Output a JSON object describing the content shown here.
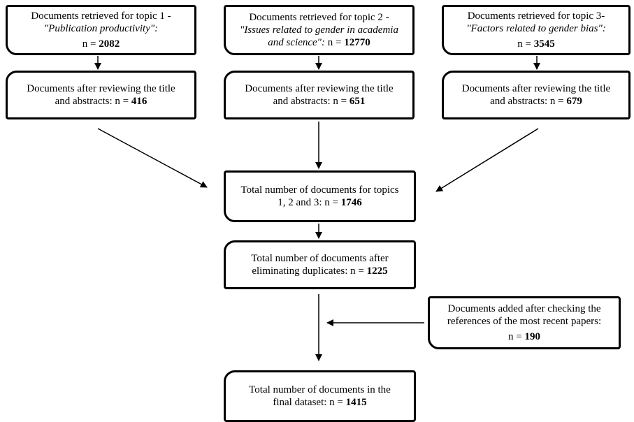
{
  "topic1": {
    "title_line1": "Documents retrieved for topic 1 -",
    "title_line2": "\"Publication productivity\":",
    "n_label": "n =",
    "n_value": "2082"
  },
  "topic2": {
    "title_line1": "Documents retrieved for topic 2 -",
    "title_line2": "\"Issues related to gender in academia",
    "title_line3a": "and science\":",
    "n_label": "n =",
    "n_value": "12770"
  },
  "topic3": {
    "title_line1": "Documents retrieved for topic 3-",
    "title_line2": "\"Factors related to gender bias\":",
    "n_label": "n =",
    "n_value": "3545"
  },
  "review1": {
    "line1": "Documents after reviewing the title",
    "line2a": "and abstracts: n =",
    "n_value": "416"
  },
  "review2": {
    "line1": "Documents after reviewing the title",
    "line2a": "and abstracts: n =",
    "n_value": "651"
  },
  "review3": {
    "line1": "Documents after reviewing the title",
    "line2a": "and abstracts: n =",
    "n_value": "679"
  },
  "total": {
    "line1": "Total number of documents for topics",
    "line2a": "1, 2 and 3:  n =",
    "n_value": "1746"
  },
  "dedup": {
    "line1": "Total number of documents after",
    "line2a": "eliminating duplicates: n =",
    "n_value": "1225"
  },
  "added": {
    "line1": "Documents added after checking the",
    "line2": "references of the most recent papers:",
    "n_label": "n =",
    "n_value": "190"
  },
  "final": {
    "line1": "Total number of documents in the",
    "line2a": "final dataset: n =",
    "n_value": "1415"
  }
}
